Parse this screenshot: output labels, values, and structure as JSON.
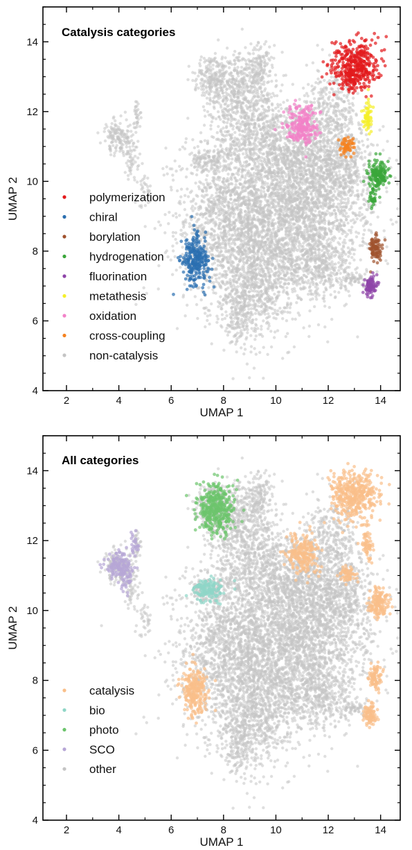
{
  "chart_data": [
    {
      "type": "scatter",
      "title": "Catalysis categories",
      "xlabel": "UMAP 1",
      "ylabel": "UMAP 2",
      "xlim": [
        1.1,
        14.75
      ],
      "ylim": [
        4,
        15
      ],
      "xticks": [
        2,
        4,
        6,
        8,
        10,
        12,
        14
      ],
      "yticks": [
        4,
        6,
        8,
        10,
        12,
        14
      ],
      "legend_position": "middle-left",
      "series": [
        {
          "name": "polymerization",
          "color": "#e31a1c",
          "clusters": [
            {
              "cx": 13.0,
              "cy": 13.3,
              "sx": 0.45,
              "sy": 0.35,
              "n": 420
            }
          ]
        },
        {
          "name": "chiral",
          "color": "#2b6fb0",
          "clusters": [
            {
              "cx": 6.9,
              "cy": 7.7,
              "sx": 0.25,
              "sy": 0.35,
              "n": 260
            }
          ]
        },
        {
          "name": "borylation",
          "color": "#a0522d",
          "clusters": [
            {
              "cx": 13.8,
              "cy": 8.1,
              "sx": 0.12,
              "sy": 0.2,
              "n": 90
            }
          ]
        },
        {
          "name": "hydrogenation",
          "color": "#3aa63a",
          "clusters": [
            {
              "cx": 13.9,
              "cy": 10.2,
              "sx": 0.2,
              "sy": 0.2,
              "n": 160
            },
            {
              "cx": 13.7,
              "cy": 9.5,
              "sx": 0.08,
              "sy": 0.12,
              "n": 30
            }
          ]
        },
        {
          "name": "fluorination",
          "color": "#8e44a8",
          "clusters": [
            {
              "cx": 13.6,
              "cy": 7.0,
              "sx": 0.12,
              "sy": 0.15,
              "n": 90
            }
          ]
        },
        {
          "name": "metathesis",
          "color": "#f5ef2a",
          "clusters": [
            {
              "cx": 13.5,
              "cy": 11.9,
              "sx": 0.1,
              "sy": 0.25,
              "n": 60
            }
          ]
        },
        {
          "name": "oxidation",
          "color": "#f282c8",
          "clusters": [
            {
              "cx": 11.0,
              "cy": 11.6,
              "sx": 0.3,
              "sy": 0.3,
              "n": 230
            }
          ]
        },
        {
          "name": "cross-coupling",
          "color": "#f58220",
          "clusters": [
            {
              "cx": 12.7,
              "cy": 11.0,
              "sx": 0.15,
              "sy": 0.12,
              "n": 60
            }
          ]
        },
        {
          "name": "non-catalysis",
          "color": "#c4c4c4",
          "background": true
        }
      ]
    },
    {
      "type": "scatter",
      "title": "All categories",
      "xlabel": "UMAP 1",
      "ylabel": "UMAP 2",
      "xlim": [
        1.1,
        14.75
      ],
      "ylim": [
        4,
        15
      ],
      "xticks": [
        2,
        4,
        6,
        8,
        10,
        12,
        14
      ],
      "yticks": [
        4,
        6,
        8,
        10,
        12,
        14
      ],
      "legend_position": "bottom-left",
      "series": [
        {
          "name": "catalysis",
          "color": "#f9bf8a",
          "clusters": [
            {
              "cx": 13.0,
              "cy": 13.3,
              "sx": 0.45,
              "sy": 0.35,
              "n": 420
            },
            {
              "cx": 6.9,
              "cy": 7.7,
              "sx": 0.25,
              "sy": 0.35,
              "n": 260
            },
            {
              "cx": 13.8,
              "cy": 8.1,
              "sx": 0.12,
              "sy": 0.2,
              "n": 90
            },
            {
              "cx": 13.9,
              "cy": 10.2,
              "sx": 0.2,
              "sy": 0.2,
              "n": 160
            },
            {
              "cx": 13.6,
              "cy": 7.0,
              "sx": 0.12,
              "sy": 0.15,
              "n": 90
            },
            {
              "cx": 13.5,
              "cy": 11.9,
              "sx": 0.1,
              "sy": 0.25,
              "n": 60
            },
            {
              "cx": 11.0,
              "cy": 11.6,
              "sx": 0.3,
              "sy": 0.3,
              "n": 230
            },
            {
              "cx": 12.7,
              "cy": 11.0,
              "sx": 0.15,
              "sy": 0.12,
              "n": 60
            }
          ]
        },
        {
          "name": "bio",
          "color": "#8fd6c7",
          "clusters": [
            {
              "cx": 7.4,
              "cy": 10.6,
              "sx": 0.3,
              "sy": 0.15,
              "n": 140
            }
          ]
        },
        {
          "name": "photo",
          "color": "#6cc46c",
          "clusters": [
            {
              "cx": 7.7,
              "cy": 12.9,
              "sx": 0.35,
              "sy": 0.35,
              "n": 380
            }
          ]
        },
        {
          "name": "SCO",
          "color": "#b7a6d6",
          "clusters": [
            {
              "cx": 4.0,
              "cy": 11.3,
              "sx": 0.25,
              "sy": 0.2,
              "n": 150
            },
            {
              "cx": 4.6,
              "cy": 11.9,
              "sx": 0.1,
              "sy": 0.15,
              "n": 25
            },
            {
              "cx": 4.3,
              "cy": 10.8,
              "sx": 0.1,
              "sy": 0.15,
              "n": 25
            }
          ]
        },
        {
          "name": "other",
          "color": "#c4c4c4",
          "background": true
        }
      ]
    }
  ]
}
